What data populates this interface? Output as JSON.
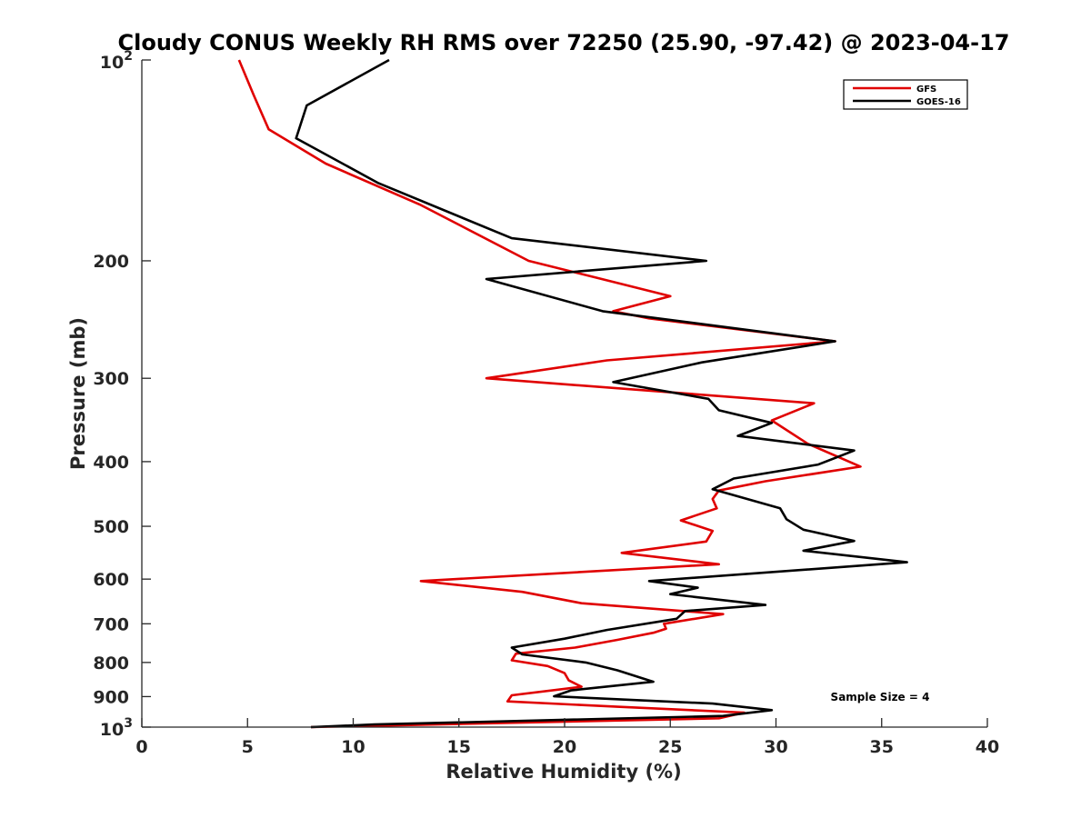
{
  "chart_data": {
    "type": "line",
    "title": "Cloudy CONUS Weekly RH RMS over 72250 (25.90, -97.42) @ 2023-04-17",
    "xlabel": "Relative Humidity (%)",
    "ylabel": "Pressure (mb)",
    "xlim": [
      0,
      40
    ],
    "ylim": [
      100,
      1000
    ],
    "y_scale": "log",
    "y_reversed": true,
    "x_ticks": [
      0,
      5,
      10,
      15,
      20,
      25,
      30,
      35,
      40
    ],
    "y_ticks": [
      100,
      200,
      300,
      400,
      500,
      600,
      700,
      800,
      900,
      1000
    ],
    "y_tick_labels": {
      "100": {
        "base": "10",
        "exp": "2"
      },
      "200": "200",
      "300": "300",
      "400": "400",
      "500": "500",
      "600": "600",
      "700": "700",
      "800": "800",
      "900": "900",
      "1000": {
        "base": "10",
        "exp": "3"
      }
    },
    "grid": false,
    "legend_position": "top-right",
    "annotation": "Sample Size = 4",
    "series": [
      {
        "name": "GFS",
        "color": "#e00000",
        "points": [
          [
            4.6,
            100
          ],
          [
            5.3,
            113
          ],
          [
            6.0,
            127
          ],
          [
            8.7,
            143
          ],
          [
            13.2,
            165
          ],
          [
            18.3,
            200
          ],
          [
            21.5,
            212
          ],
          [
            25.0,
            226
          ],
          [
            22.3,
            238
          ],
          [
            24.0,
            244
          ],
          [
            32.8,
            264
          ],
          [
            22.0,
            282
          ],
          [
            16.3,
            300
          ],
          [
            31.8,
            327
          ],
          [
            29.8,
            347
          ],
          [
            31.5,
            376
          ],
          [
            34.0,
            407
          ],
          [
            29.5,
            428
          ],
          [
            27.3,
            442
          ],
          [
            27.0,
            455
          ],
          [
            27.2,
            470
          ],
          [
            25.5,
            490
          ],
          [
            27.0,
            508
          ],
          [
            26.7,
            527
          ],
          [
            22.7,
            548
          ],
          [
            27.3,
            570
          ],
          [
            13.2,
            604
          ],
          [
            18.0,
            627
          ],
          [
            20.8,
            652
          ],
          [
            27.5,
            677
          ],
          [
            24.7,
            700
          ],
          [
            24.8,
            712
          ],
          [
            24.2,
            722
          ],
          [
            22.5,
            740
          ],
          [
            20.5,
            760
          ],
          [
            17.7,
            776
          ],
          [
            17.5,
            794
          ],
          [
            19.2,
            810
          ],
          [
            20.0,
            830
          ],
          [
            20.2,
            851
          ],
          [
            20.8,
            870
          ],
          [
            17.5,
            896
          ],
          [
            17.3,
            915
          ],
          [
            22.5,
            932
          ],
          [
            28.5,
            951
          ],
          [
            27.3,
            970
          ],
          [
            8.0,
            1000
          ]
        ]
      },
      {
        "name": "GOES-16",
        "color": "#000000",
        "points": [
          [
            11.7,
            100
          ],
          [
            7.8,
            117
          ],
          [
            7.3,
            131
          ],
          [
            11.2,
            153
          ],
          [
            17.5,
            185
          ],
          [
            26.7,
            200
          ],
          [
            16.3,
            213
          ],
          [
            21.8,
            238
          ],
          [
            32.8,
            264
          ],
          [
            26.5,
            284
          ],
          [
            22.3,
            304
          ],
          [
            26.8,
            322
          ],
          [
            27.3,
            335
          ],
          [
            29.8,
            350
          ],
          [
            28.2,
            366
          ],
          [
            33.7,
            385
          ],
          [
            32.0,
            404
          ],
          [
            28.0,
            424
          ],
          [
            27.0,
            440
          ],
          [
            30.2,
            470
          ],
          [
            30.5,
            488
          ],
          [
            31.3,
            506
          ],
          [
            33.7,
            526
          ],
          [
            31.3,
            544
          ],
          [
            36.2,
            566
          ],
          [
            24.0,
            604
          ],
          [
            26.3,
            618
          ],
          [
            25.0,
            632
          ],
          [
            29.5,
            656
          ],
          [
            25.7,
            670
          ],
          [
            25.3,
            688
          ],
          [
            22.0,
            715
          ],
          [
            20.0,
            737
          ],
          [
            17.5,
            760
          ],
          [
            18.0,
            778
          ],
          [
            21.0,
            800
          ],
          [
            22.5,
            822
          ],
          [
            24.2,
            855
          ],
          [
            20.3,
            881
          ],
          [
            19.5,
            899
          ],
          [
            27.0,
            922
          ],
          [
            29.8,
            943
          ],
          [
            27.5,
            962
          ],
          [
            11.0,
            991
          ],
          [
            8.0,
            1000
          ]
        ]
      }
    ]
  }
}
